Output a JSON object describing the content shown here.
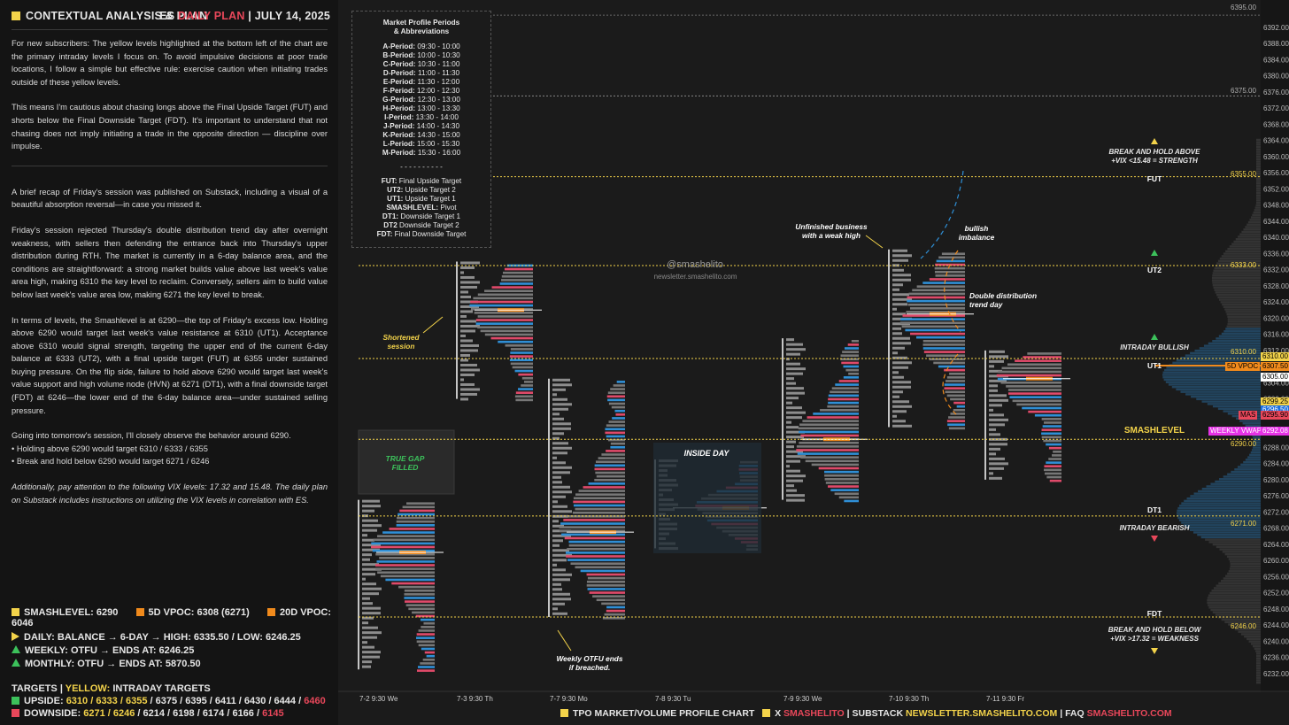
{
  "header": {
    "title": "CONTEXTUAL ANALYSIS & PLAN",
    "symbol": "ES",
    "plan": "DAILY PLAN",
    "sep": "|",
    "date": "JULY 14, 2025"
  },
  "body": {
    "p1": "For new subscribers: The yellow levels highlighted at the bottom left of the chart are the primary intraday levels I focus on. To avoid impulsive decisions at poor trade locations, I follow a simple but effective rule: exercise caution when initiating trades outside of these yellow levels.",
    "p2": "This means I'm cautious about chasing longs above the Final Upside Target (FUT) and shorts below the Final Downside Target (FDT). It's important to understand that not chasing does not imply initiating a trade in the opposite direction — discipline over impulse.",
    "p3": "A brief recap of Friday's session was published on Substack, including a visual of a beautiful absorption reversal—in case you missed it.",
    "p4": "Friday's session rejected Thursday's double distribution trend day after overnight weakness, with sellers then defending the entrance back into Thursday's upper distribution during RTH. The market is currently in a 6-day balance area, and the conditions are straightforward: a strong market builds value above last week's value area high, making 6310 the key level to reclaim. Conversely, sellers aim to build value below last week's value area low, making 6271 the key level to break.",
    "p5": "In terms of levels, the Smashlevel is at 6290—the top of Friday's excess low. Holding above 6290 would target last week's value resistance at 6310 (UT1). Acceptance above 6310 would signal strength, targeting the upper end of the current 6-day balance at 6333 (UT2), with a final upside target (FUT) at 6355 under sustained buying pressure. On the flip side, failure to hold above 6290 would target last week's value support and high volume node (HVN) at 6271 (DT1), with a final downside target (FDT) at 6246—the lower end of the 6-day balance area—under sustained selling pressure.",
    "p6": "Going into tomorrow's session, I'll closely observe the behavior around 6290.",
    "b1": "• Holding above 6290 would target 6310 / 6333 / 6355",
    "b2": "• Break and hold below 6290 would target 6271 / 6246",
    "p7": "Additionally, pay attention to the following VIX levels: 17.32 and 15.48. The daily plan on Substack includes instructions on utilizing the VIX levels in correlation with ES."
  },
  "legend": {
    "smashlevel": "SMASHLEVEL: 6290",
    "vpoc5": "5D VPOC: 6308 (6271)",
    "vpoc20": "20D VPOC: 6046",
    "daily": "DAILY: BALANCE → 6-DAY → HIGH: 6335.50 / LOW: 6246.25",
    "weekly": "WEEKLY: OTFU → ENDS AT: 6246.25",
    "monthly": "MONTHLY: OTFU → ENDS AT: 5870.50",
    "targets_label": "TARGETS",
    "targets_sep": "|",
    "targets_yellow": "YELLOW:",
    "targets_intraday": "INTRADAY TARGETS",
    "upside_label": "UPSIDE:",
    "upside_yellow": "6310 / 6333 / 6355",
    "upside_rest": "/ 6375 / 6395 / 6411 / 6430 / 6444 /",
    "upside_last": "6460",
    "downside_label": "DOWNSIDE:",
    "downside_yellow": "6271 / 6246",
    "downside_rest": "/ 6214 / 6198 / 6174 / 6166 /",
    "downside_last": "6145"
  },
  "periods": {
    "title1": "Market Profile Periods",
    "title2": "& Abbreviations",
    "list": [
      "A-Period: 09:30 - 10:00",
      "B-Period: 10:00 - 10:30",
      "C-Period: 10:30 - 11:00",
      "D-Period: 11:00 - 11:30",
      "E-Period: 11:30 - 12:00",
      "F-Period: 12:00 - 12:30",
      "G-Period: 12:30 - 13:00",
      "H-Period: 13:00 - 13:30",
      "I-Period: 13:30 - 14:00",
      "J-Period: 14:00 - 14:30",
      "K-Period: 14:30 - 15:00",
      "L-Period: 15:00 - 15:30",
      "M-Period: 15:30 - 16:00"
    ],
    "divider": "- - - - - - - - - -",
    "abbr": [
      "FUT: Final Upside Target",
      "UT2: Upside Target 2",
      "UT1: Upside Target 1",
      "SMASHLEVEL: Pivot",
      "DT1: Downside Target 1",
      "DT2 Downside Target 2",
      "FDT: Final Downside Target"
    ]
  },
  "watermark": {
    "handle": "@smashelito",
    "site": "newsletter.smashelito.com"
  },
  "annotations": {
    "shortened": "Shortened session",
    "true_gap": "TRUE GAP FILLED",
    "inside_day": "INSIDE DAY",
    "unfinished": "Unfinished business with a weak high",
    "bullish": "bullish imbalance",
    "double_dist": "Double distribution trend day",
    "weekly_otfu": "Weekly OTFU ends if breached."
  },
  "levels": {
    "fut": "FUT",
    "ut2": "UT2",
    "ut1": "UT1",
    "smash": "SMASHLEVEL",
    "dt1": "DT1",
    "fdt": "FDT",
    "break_above_1": "BREAK AND HOLD ABOVE",
    "break_above_2": "+VIX <15.48 = STRENGTH",
    "intraday_bullish": "INTRADAY BULLISH",
    "intraday_bearish": "INTRADAY BEARISH",
    "break_below_1": "BREAK AND HOLD BELOW",
    "break_below_2": "+VIX >17.32 = WEAKNESS"
  },
  "price_labels": {
    "p6395": "6395.00",
    "p6375": "6375.00",
    "p6355": "6355.00",
    "p6333": "6333.00",
    "p6310": "6310.00",
    "p6290": "6290.00",
    "p6271": "6271.00",
    "p6246": "6246.00"
  },
  "axis": {
    "ticks": [
      "6392.00",
      "6388.00",
      "6384.00",
      "6380.00",
      "6376.00",
      "6372.00",
      "6368.00",
      "6364.00",
      "6360.00",
      "6356.00",
      "6352.00",
      "6348.00",
      "6344.00",
      "6340.00",
      "6336.00",
      "6332.00",
      "6328.00",
      "6324.00",
      "6320.00",
      "6316.00",
      "6312.00",
      "6308.00",
      "6304.00",
      "6300.00",
      "6296.00",
      "6292.00",
      "6288.00",
      "6284.00",
      "6280.00",
      "6276.00",
      "6272.00",
      "6268.00",
      "6264.00",
      "6260.00",
      "6256.00",
      "6252.00",
      "6248.00",
      "6244.00",
      "6240.00",
      "6236.00",
      "6232.00"
    ],
    "tags": {
      "t6310": "6310.00",
      "vpoc5d": "5D VPOC",
      "vpoc5d_val": "6307.50",
      "t6305": "6305.00",
      "t6299": "6299.25",
      "t6296": "6296.50",
      "mas": "MAS",
      "mas_val": "6295.90",
      "wvwap": "WEEKLY VWAP",
      "wvwap_val": "6292.08"
    }
  },
  "x_labels": [
    "7-2  9:30 We",
    "7-3  9:30 Th",
    "7-7  9:30 Mo",
    "7-8  9:30 Tu",
    "7-9  9:30 We",
    "7-10  9:30 Th",
    "7-11  9:30 Fr"
  ],
  "footer": {
    "chart_name": "TPO MARKET/VOLUME PROFILE CHART",
    "x": "X",
    "x_handle": "SMASHELITO",
    "sep": "|",
    "substack": "SUBSTACK",
    "substack_url": "NEWSLETTER.SMASHELITO.COM",
    "faq": "FAQ",
    "faq_handle": "SMASHELITO.COM"
  },
  "colors": {
    "yellow": "#f3d34a",
    "red": "#e8475a",
    "green": "#3cc15b",
    "orange": "#f08a1c",
    "blue": "#2f8fd6",
    "pink": "#e04a6a"
  },
  "chart_data": {
    "type": "tpo_profile",
    "title": "ES TPO Market/Volume Profile",
    "y_range": [
      6230,
      6397
    ],
    "sessions": [
      {
        "label": "7-2 9:30 We",
        "high": 6275,
        "low": 6233,
        "poc": 6262
      },
      {
        "label": "7-3 9:30 Th",
        "high": 6334,
        "low": 6300,
        "poc": 6322
      },
      {
        "label": "7-7 9:30 Mo",
        "high": 6305,
        "low": 6246,
        "poc": 6267
      },
      {
        "label": "7-8 9:30 Tu",
        "high": 6285,
        "low": 6263,
        "poc": 6273
      },
      {
        "label": "7-9 9:30 We",
        "high": 6315,
        "low": 6275,
        "poc": 6290
      },
      {
        "label": "7-10 9:30 Th",
        "high": 6337,
        "low": 6293,
        "poc": 6321
      },
      {
        "label": "7-11 9:30 Fr",
        "high": 6312,
        "low": 6280,
        "poc": 6305
      }
    ],
    "levels": [
      {
        "name": "6395.00",
        "value": 6395
      },
      {
        "name": "6375.00",
        "value": 6375
      },
      {
        "name": "FUT",
        "value": 6355
      },
      {
        "name": "UT2",
        "value": 6333
      },
      {
        "name": "UT1",
        "value": 6310
      },
      {
        "name": "SMASHLEVEL",
        "value": 6290
      },
      {
        "name": "DT1",
        "value": 6271
      },
      {
        "name": "FDT",
        "value": 6246
      }
    ]
  }
}
